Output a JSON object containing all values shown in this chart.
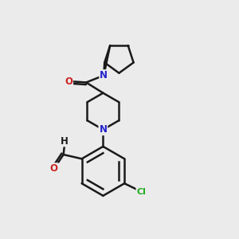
{
  "background_color": "#ebebeb",
  "bond_color": "#1a1a1a",
  "bond_width": 1.8,
  "N_color": "#2222cc",
  "O_color": "#cc2222",
  "Cl_color": "#22aa22",
  "C_color": "#1a1a1a",
  "font_size": 8.5,
  "figsize": [
    3.0,
    3.0
  ],
  "dpi": 100,
  "xlim": [
    0,
    10
  ],
  "ylim": [
    0,
    10
  ]
}
